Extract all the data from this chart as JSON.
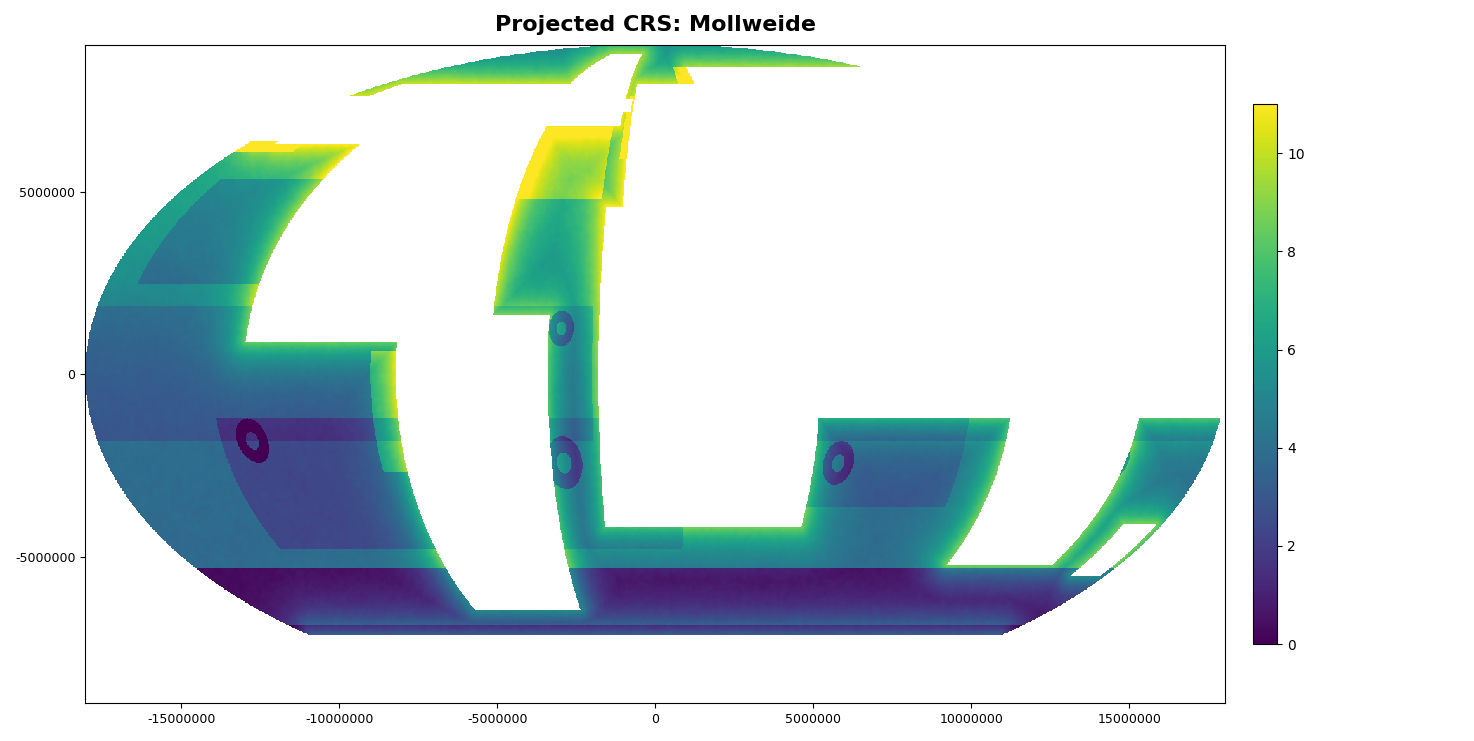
{
  "title": "Projected CRS: Mollweide",
  "title_fontsize": 16,
  "title_fontweight": "bold",
  "cmap": "viridis",
  "vmin": 0,
  "vmax": 11,
  "colorbar_ticks": [
    0,
    2,
    4,
    6,
    8,
    10
  ],
  "xlim": [
    -18040096,
    18040096
  ],
  "ylim": [
    -9020048,
    9020048
  ],
  "xticks": [
    -15000000,
    -10000000,
    -5000000,
    0,
    5000000,
    10000000,
    15000000
  ],
  "yticks": [
    -5000000,
    0,
    5000000
  ],
  "background_color": "#ffffff",
  "fig_width": 14.74,
  "fig_height": 7.41,
  "dpi": 100,
  "nx": 1800,
  "ny": 900,
  "base_ocean": 3.8,
  "noise_sigma": 5,
  "noise_amplitude": 0.6
}
